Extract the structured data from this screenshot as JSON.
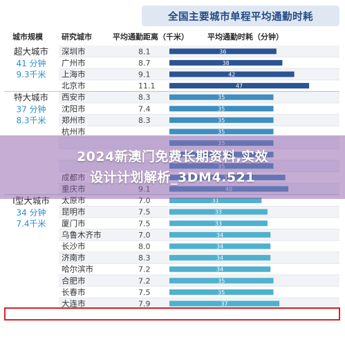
{
  "chart_data": {
    "type": "bar",
    "title": "全国主要城市单程平均通勤时耗",
    "columns": {
      "tier": "城市规模",
      "city": "研究城市",
      "distance": "平均通勤距离（千米）",
      "duration": "平均通勤时耗（分钟）"
    },
    "tiers": [
      {
        "name": "超大城市",
        "avg_time": "41 分钟",
        "avg_dist": "9.3千米"
      },
      {
        "name": "特大城市",
        "avg_time": "37 分钟",
        "avg_dist": "8.3千米"
      },
      {
        "name": "Ⅰ型大城市",
        "avg_time": "34 分钟",
        "avg_dist": "7.4千米"
      }
    ],
    "rows": [
      {
        "city": "深圳市",
        "distance": "8.1",
        "minutes": 36,
        "tier": 0
      },
      {
        "city": "广州市",
        "distance": "8.7",
        "minutes": 38,
        "tier": 0
      },
      {
        "city": "上海市",
        "distance": "9.1",
        "minutes": 42,
        "tier": 0
      },
      {
        "city": "北京市",
        "distance": "11.1",
        "minutes": 47,
        "tier": 0
      },
      {
        "city": "西安市",
        "distance": "8.3",
        "minutes": 35,
        "tier": 1
      },
      {
        "city": "沈阳市",
        "distance": "7.4",
        "minutes": 35,
        "tier": 1
      },
      {
        "city": "郑州市",
        "distance": "8.3",
        "minutes": 35,
        "tier": 1
      },
      {
        "city": "杭州市",
        "distance": "",
        "minutes": 35,
        "tier": 1
      },
      {
        "city": "",
        "distance": "",
        "minutes": 35,
        "tier": 1
      },
      {
        "city": "",
        "distance": "",
        "minutes": 35,
        "tier": 1
      },
      {
        "city": "",
        "distance": "",
        "minutes": 35,
        "tier": 1
      },
      {
        "city": "成都市",
        "distance": "9.1",
        "minutes": 39,
        "tier": 1
      },
      {
        "city": "重庆市",
        "distance": "9.1",
        "minutes": 40,
        "tier": 1
      },
      {
        "city": "太原市",
        "distance": "7.0",
        "minutes": 31,
        "tier": 2
      },
      {
        "city": "昆明市",
        "distance": "7.5",
        "minutes": 33,
        "tier": 2
      },
      {
        "city": "厦门市",
        "distance": "7.5",
        "minutes": 33,
        "tier": 2
      },
      {
        "city": "乌鲁木齐市",
        "distance": "7.0",
        "minutes": 34,
        "tier": 2
      },
      {
        "city": "长沙市",
        "distance": "8.0",
        "minutes": 34,
        "tier": 2
      },
      {
        "city": "济南市",
        "distance": "8.3",
        "minutes": 34,
        "tier": 2
      },
      {
        "city": "哈尔滨市",
        "distance": "7.2",
        "minutes": 34,
        "tier": 2
      },
      {
        "city": "合肥市",
        "distance": "7.2",
        "minutes": 35,
        "tier": 2,
        "highlighted": true
      },
      {
        "city": "长春市",
        "distance": "7.5",
        "minutes": 35,
        "tier": 2
      },
      {
        "city": "大连市",
        "distance": "7.9",
        "minutes": 37,
        "tier": 2
      }
    ],
    "colors": {
      "tier0_bar": "#2a5494",
      "tier1_bar": "#3f8ec0",
      "tier2_bar": "#4fb0cf",
      "highlight": "#d4242a",
      "overlay": "#8c5caa"
    }
  },
  "overlay": {
    "line1": "2024新澳门免费长期资料,实效",
    "line2": "设计计划解析_3DM4.521"
  }
}
